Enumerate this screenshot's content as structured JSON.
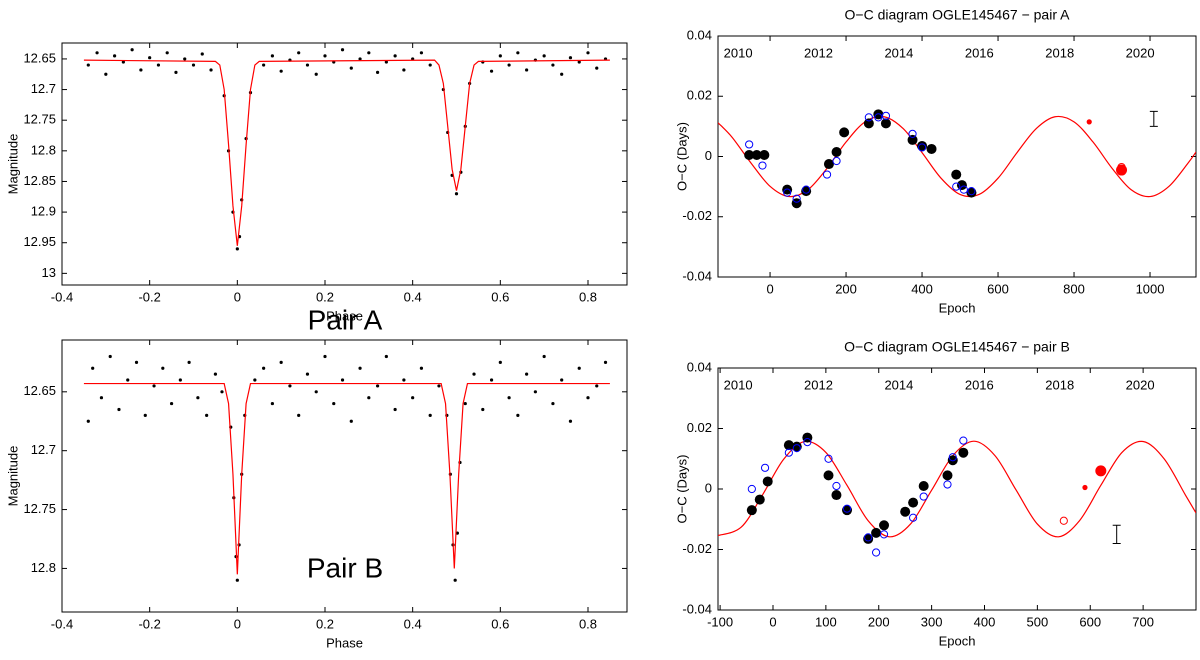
{
  "chart_data": [
    {
      "type": "scatter",
      "xlabel": "Phase",
      "ylabel": "Magnitude",
      "annotation": "Pair A",
      "xlim": [
        -0.4,
        0.889
      ],
      "ylim": [
        12.624,
        13.019
      ],
      "y_inverted": true,
      "xticks": [
        -0.4,
        -0.2,
        0,
        0.2,
        0.4,
        0.6,
        0.8
      ],
      "yticks": [
        12.65,
        12.7,
        12.75,
        12.8,
        12.85,
        12.9,
        12.95,
        13
      ],
      "series": [
        {
          "color": "#000000",
          "marker": "dot",
          "x": [
            -0.34,
            -0.32,
            -0.3,
            -0.28,
            -0.26,
            -0.24,
            -0.22,
            -0.2,
            -0.18,
            -0.16,
            -0.14,
            -0.12,
            -0.1,
            -0.08,
            -0.06,
            -0.03,
            -0.02,
            -0.01,
            0,
            0.005,
            0.01,
            0.02,
            0.03,
            0.06,
            0.08,
            0.1,
            0.12,
            0.14,
            0.16,
            0.18,
            0.2,
            0.22,
            0.24,
            0.26,
            0.28,
            0.3,
            0.32,
            0.34,
            0.36,
            0.38,
            0.4,
            0.42,
            0.44,
            0.47,
            0.48,
            0.49,
            0.5,
            0.51,
            0.52,
            0.53,
            0.56,
            0.58,
            0.6,
            0.62,
            0.64,
            0.66,
            0.68,
            0.7,
            0.72,
            0.74,
            0.76,
            0.78,
            0.8,
            0.82,
            0.84
          ],
          "values": [
            12.66,
            12.64,
            12.675,
            12.645,
            12.655,
            12.635,
            12.668,
            12.648,
            12.66,
            12.64,
            12.672,
            12.65,
            12.66,
            12.642,
            12.668,
            12.71,
            12.8,
            12.9,
            12.96,
            12.94,
            12.88,
            12.78,
            12.705,
            12.66,
            12.645,
            12.67,
            12.652,
            12.64,
            12.66,
            12.675,
            12.645,
            12.655,
            12.635,
            12.665,
            12.65,
            12.64,
            12.672,
            12.655,
            12.645,
            12.668,
            12.65,
            12.64,
            12.66,
            12.7,
            12.77,
            12.84,
            12.87,
            12.835,
            12.76,
            12.69,
            12.655,
            12.67,
            12.645,
            12.66,
            12.64,
            12.668,
            12.652,
            12.645,
            12.66,
            12.675,
            12.648,
            12.655,
            12.64,
            12.665,
            12.65
          ]
        },
        {
          "color": "#ff0000",
          "marker": "line",
          "x": [
            -0.35,
            -0.05,
            -0.04,
            -0.03,
            -0.02,
            -0.01,
            0,
            0.01,
            0.02,
            0.03,
            0.04,
            0.05,
            0.45,
            0.46,
            0.47,
            0.48,
            0.49,
            0.5,
            0.51,
            0.52,
            0.53,
            0.54,
            0.55,
            0.85
          ],
          "values": [
            12.652,
            12.654,
            12.66,
            12.7,
            12.79,
            12.89,
            12.955,
            12.89,
            12.79,
            12.7,
            12.66,
            12.654,
            12.652,
            12.66,
            12.69,
            12.76,
            12.83,
            12.865,
            12.83,
            12.76,
            12.69,
            12.66,
            12.654,
            12.652
          ]
        }
      ]
    },
    {
      "type": "oc",
      "title": "O−C diagram OGLE145467 − pair A",
      "xlabel": "Epoch",
      "ylabel": "O−C (Days)",
      "xlim": [
        -137,
        1121
      ],
      "ylim": [
        -0.04,
        0.04
      ],
      "x2lim": [
        2009.5,
        2021.39
      ],
      "xticks": [
        0,
        200,
        400,
        600,
        800,
        1000
      ],
      "yticks": [
        -0.04,
        -0.02,
        0,
        0.02,
        0.04
      ],
      "x2ticks": [
        2010,
        2012,
        2014,
        2016,
        2018,
        2020
      ],
      "series": [
        {
          "color": "#ff0000",
          "marker": "line",
          "smooth": true,
          "x": [
            -137,
            -100,
            -50,
            0,
            50,
            100,
            150,
            200,
            250,
            300,
            350,
            400,
            450,
            500,
            550,
            600,
            650,
            700,
            750,
            800,
            850,
            900,
            950,
            1000,
            1050,
            1100,
            1121
          ],
          "values": [
            0.0112,
            0.0064,
            -0.0022,
            -0.0099,
            -0.0133,
            -0.011,
            -0.0039,
            0.0048,
            0.0115,
            0.0132,
            0.0093,
            0.0013,
            -0.0072,
            -0.0126,
            -0.0126,
            -0.0072,
            0.0013,
            0.0092,
            0.0132,
            0.0115,
            0.0048,
            -0.0039,
            -0.011,
            -0.0133,
            -0.0099,
            -0.0022,
            0.0015
          ]
        },
        {
          "color": "#000000",
          "marker": "filled",
          "x": [
            -55,
            -35,
            -15,
            45,
            70,
            95,
            155,
            175,
            195,
            260,
            285,
            305,
            375,
            400,
            425,
            490,
            505,
            530
          ],
          "values": [
            0.0005,
            0.0005,
            0.0005,
            -0.011,
            -0.0155,
            -0.0115,
            -0.0025,
            0.0015,
            0.008,
            0.011,
            0.014,
            0.011,
            0.0055,
            0.0035,
            0.0025,
            -0.006,
            -0.0095,
            -0.012
          ]
        },
        {
          "color": "#0000ff",
          "marker": "open",
          "x": [
            -55,
            -20,
            45,
            70,
            95,
            150,
            175,
            260,
            285,
            305,
            375,
            400,
            490,
            510,
            530
          ],
          "values": [
            0.004,
            -0.003,
            -0.012,
            -0.014,
            -0.011,
            -0.006,
            -0.0015,
            0.013,
            0.013,
            0.0135,
            0.0075,
            0.003,
            -0.01,
            -0.011,
            -0.0115
          ]
        },
        {
          "color": "#ff0000",
          "marker": "open",
          "x": [
            925
          ],
          "values": [
            -0.0035
          ]
        },
        {
          "color": "#ff0000",
          "marker": "small",
          "x": [
            840
          ],
          "values": [
            0.0115
          ]
        },
        {
          "color": "#ff0000",
          "marker": "large",
          "x": [
            925
          ],
          "values": [
            -0.0045
          ]
        }
      ],
      "error_bar": {
        "x": 1010,
        "value": 0.0125,
        "error": 0.0025
      }
    },
    {
      "type": "scatter",
      "xlabel": "Phase",
      "ylabel": "Magnitude",
      "annotation": "Pair B",
      "xlim": [
        -0.4,
        0.889
      ],
      "ylim": [
        12.606,
        12.837
      ],
      "y_inverted": true,
      "xticks": [
        -0.4,
        -0.2,
        0,
        0.2,
        0.4,
        0.6,
        0.8
      ],
      "yticks": [
        12.65,
        12.7,
        12.75,
        12.8
      ],
      "series": [
        {
          "color": "#000000",
          "marker": "dot",
          "x": [
            -0.34,
            -0.33,
            -0.31,
            -0.29,
            -0.27,
            -0.25,
            -0.23,
            -0.21,
            -0.19,
            -0.17,
            -0.15,
            -0.13,
            -0.11,
            -0.09,
            -0.07,
            -0.05,
            -0.035,
            -0.015,
            -0.008,
            -0.003,
            0,
            0.004,
            0.01,
            0.017,
            0.04,
            0.06,
            0.08,
            0.1,
            0.12,
            0.14,
            0.16,
            0.18,
            0.2,
            0.22,
            0.24,
            0.26,
            0.28,
            0.3,
            0.32,
            0.34,
            0.36,
            0.38,
            0.4,
            0.42,
            0.44,
            0.46,
            0.478,
            0.486,
            0.492,
            0.497,
            0.502,
            0.508,
            0.52,
            0.54,
            0.56,
            0.58,
            0.6,
            0.62,
            0.64,
            0.66,
            0.68,
            0.7,
            0.72,
            0.74,
            0.76,
            0.78,
            0.8,
            0.82,
            0.84
          ],
          "values": [
            12.675,
            12.63,
            12.655,
            12.62,
            12.665,
            12.64,
            12.625,
            12.67,
            12.645,
            12.63,
            12.66,
            12.64,
            12.625,
            12.655,
            12.67,
            12.635,
            12.65,
            12.68,
            12.74,
            12.79,
            12.81,
            12.78,
            12.72,
            12.67,
            12.64,
            12.63,
            12.66,
            12.625,
            12.645,
            12.67,
            12.635,
            12.65,
            12.62,
            12.66,
            12.64,
            12.675,
            12.63,
            12.655,
            12.645,
            12.62,
            12.665,
            12.64,
            12.655,
            12.63,
            12.67,
            12.645,
            12.67,
            12.72,
            12.78,
            12.81,
            12.77,
            12.71,
            12.66,
            12.635,
            12.665,
            12.64,
            12.625,
            12.655,
            12.67,
            12.635,
            12.65,
            12.62,
            12.66,
            12.64,
            12.675,
            12.63,
            12.655,
            12.645,
            12.625
          ]
        },
        {
          "color": "#ff0000",
          "marker": "line",
          "x": [
            -0.35,
            -0.03,
            -0.02,
            -0.01,
            0,
            0.01,
            0.02,
            0.03,
            0.465,
            0.475,
            0.485,
            0.495,
            0.505,
            0.515,
            0.525,
            0.85
          ],
          "values": [
            12.643,
            12.643,
            12.66,
            12.72,
            12.805,
            12.72,
            12.66,
            12.643,
            12.643,
            12.66,
            12.72,
            12.8,
            12.72,
            12.66,
            12.643,
            12.643
          ]
        }
      ]
    },
    {
      "type": "oc",
      "title": "O−C diagram OGLE145467 − pair B",
      "xlabel": "Epoch",
      "ylabel": "O−C (Days)",
      "xlim": [
        -104,
        800
      ],
      "ylim": [
        -0.04,
        0.04
      ],
      "x2lim": [
        2009.5,
        2021.39
      ],
      "xticks": [
        -100,
        0,
        100,
        200,
        300,
        400,
        500,
        600,
        700
      ],
      "yticks": [
        -0.04,
        -0.02,
        0,
        0.02,
        0.04
      ],
      "x2ticks": [
        2010,
        2012,
        2014,
        2016,
        2018,
        2020
      ],
      "series": [
        {
          "color": "#ff0000",
          "marker": "line",
          "smooth": true,
          "x": [
            -104,
            -60,
            -20,
            20,
            60,
            100,
            140,
            180,
            220,
            260,
            300,
            340,
            380,
            420,
            460,
            500,
            540,
            580,
            620,
            660,
            700,
            740,
            780,
            800
          ],
          "values": [
            -0.0154,
            -0.0126,
            -0.002,
            0.0098,
            0.0157,
            0.0121,
            0.0012,
            -0.0105,
            -0.0158,
            -0.0116,
            -0.0004,
            0.011,
            0.0158,
            0.011,
            -0.0004,
            -0.0116,
            -0.0158,
            -0.0104,
            0.0012,
            0.0121,
            0.0157,
            0.0099,
            -0.002,
            -0.0079
          ]
        },
        {
          "color": "#000000",
          "marker": "filled",
          "x": [
            -40,
            -25,
            -10,
            30,
            45,
            65,
            105,
            120,
            140,
            180,
            195,
            210,
            250,
            265,
            285,
            330,
            340,
            360
          ],
          "values": [
            -0.007,
            -0.0035,
            0.0025,
            0.0145,
            0.014,
            0.017,
            0.0045,
            -0.002,
            -0.007,
            -0.0165,
            -0.0145,
            -0.012,
            -0.0075,
            -0.0045,
            0.001,
            0.0045,
            0.0095,
            0.012
          ]
        },
        {
          "color": "#0000ff",
          "marker": "open",
          "x": [
            -40,
            -15,
            30,
            45,
            65,
            105,
            120,
            140,
            180,
            195,
            210,
            265,
            285,
            330,
            340,
            360
          ],
          "values": [
            0,
            0.007,
            0.012,
            0.0135,
            0.0155,
            0.01,
            0.001,
            -0.0065,
            -0.016,
            -0.021,
            -0.015,
            -0.0095,
            -0.0025,
            0.0015,
            0.0105,
            0.016
          ]
        },
        {
          "color": "#ff0000",
          "marker": "open",
          "x": [
            550
          ],
          "values": [
            -0.0105
          ]
        },
        {
          "color": "#ff0000",
          "marker": "small",
          "x": [
            590
          ],
          "values": [
            0.0005
          ]
        },
        {
          "color": "#ff0000",
          "marker": "large",
          "x": [
            620
          ],
          "values": [
            0.006
          ]
        }
      ],
      "error_bar": {
        "x": 650,
        "value": -0.015,
        "error": 0.003
      }
    }
  ]
}
